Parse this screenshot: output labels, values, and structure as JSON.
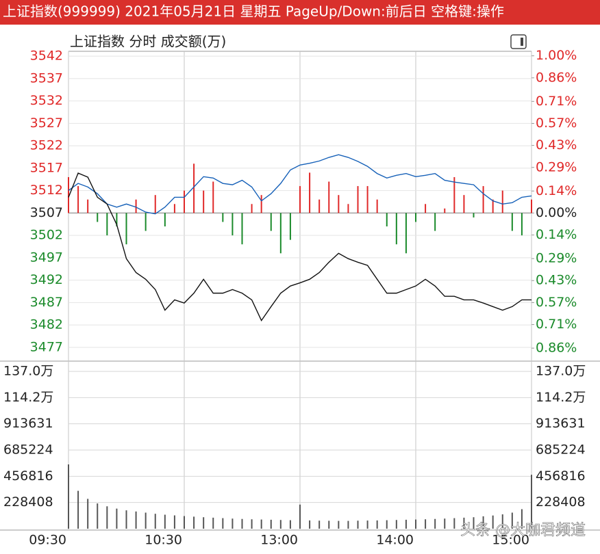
{
  "header": {
    "title": "上证指数(999999)  2021年05月21日  星期五  PageUp/Down:前后日  空格键:操作",
    "subtitle": "上证指数   分时  成交额(万)"
  },
  "watermark": "头条 @大咖君频道",
  "chart_data": [
    {
      "type": "line",
      "x": [
        0,
        5,
        10,
        15,
        20,
        25,
        30,
        35,
        40,
        45,
        50,
        55,
        60,
        65,
        70,
        75,
        80,
        85,
        90,
        95,
        100,
        105,
        110,
        115,
        120,
        125,
        130,
        135,
        140,
        145,
        150,
        155,
        160,
        165,
        170,
        175,
        180,
        185,
        190,
        195,
        200,
        205,
        210,
        215,
        220,
        225,
        230,
        235,
        240
      ],
      "xlim": [
        0,
        240
      ],
      "xticks": [
        {
          "value": 0,
          "label": "09:30"
        },
        {
          "value": 60,
          "label": "10:30"
        },
        {
          "value": 120,
          "label": "13:00"
        },
        {
          "value": 180,
          "label": "14:00"
        },
        {
          "value": 240,
          "label": "15:00"
        }
      ],
      "ylim": [
        3475,
        3544
      ],
      "yticks": [
        3542,
        3537,
        3532,
        3527,
        3522,
        3517,
        3512,
        3507,
        3502,
        3497,
        3492,
        3487,
        3482,
        3477
      ],
      "y2lim": [
        -0.912,
        1.055
      ],
      "y2ticks": [
        {
          "value": 1.0,
          "label": "1.00%"
        },
        {
          "value": 0.86,
          "label": "0.86%"
        },
        {
          "value": 0.71,
          "label": "0.71%"
        },
        {
          "value": 0.57,
          "label": "0.57%"
        },
        {
          "value": 0.43,
          "label": "0.43%"
        },
        {
          "value": 0.29,
          "label": "0.29%"
        },
        {
          "value": 0.14,
          "label": "0.14%"
        },
        {
          "value": 0,
          "label": "0.00%"
        },
        {
          "value": -0.14,
          "label": "0.14%"
        },
        {
          "value": -0.29,
          "label": "0.29%"
        },
        {
          "value": -0.43,
          "label": "0.43%"
        },
        {
          "value": -0.57,
          "label": "0.57%"
        },
        {
          "value": -0.71,
          "label": "0.71%"
        },
        {
          "value": -0.86,
          "label": "0.86%"
        }
      ],
      "grid": true,
      "up_color": "#e02828",
      "down_color": "#1a8a2a",
      "flat_color": "#222222",
      "series": [
        {
          "type": "bar",
          "up_color": "#e02828",
          "down_color": "#1a8a2a",
          "values": [
            3515,
            3513,
            3510,
            3505,
            3502,
            3504,
            3500,
            3510,
            3503,
            3511,
            3504,
            3509,
            3512,
            3518,
            3512,
            3514,
            3505,
            3502,
            3500,
            3509,
            3511,
            3503,
            3498,
            3501,
            3513,
            3516,
            3510,
            3514,
            3511,
            3509,
            3513,
            3513,
            3510,
            3504,
            3500,
            3498,
            3505,
            3509,
            3503,
            3508,
            3515,
            3511,
            3506,
            3513,
            3510,
            3512,
            3503,
            3502,
            3510
          ]
        },
        {
          "type": "line",
          "color": "#1560b8",
          "values": [
            3512,
            3513.6,
            3512.8,
            3511.3,
            3509,
            3508.3,
            3509,
            3508.3,
            3507.2,
            3506.8,
            3508.3,
            3510.5,
            3510.5,
            3512.8,
            3515.1,
            3514.8,
            3513.6,
            3513.3,
            3514.3,
            3512.8,
            3509.7,
            3511.3,
            3513.6,
            3516.6,
            3517.7,
            3518.1,
            3518.6,
            3519.4,
            3520,
            3519.4,
            3518.5,
            3517.4,
            3515.8,
            3514.8,
            3515.4,
            3515.8,
            3515.1,
            3515.4,
            3515.8,
            3514.3,
            3513.9,
            3513.6,
            3513.3,
            3511.3,
            3509.7,
            3509,
            3509.3,
            3510.5,
            3510.8
          ]
        },
        {
          "type": "line",
          "color": "#111111",
          "values": [
            3510.5,
            3515.9,
            3515,
            3510.5,
            3509,
            3504.4,
            3496.8,
            3493.7,
            3492.2,
            3489.9,
            3485.3,
            3487.6,
            3486.9,
            3489.1,
            3492.2,
            3489.1,
            3489.1,
            3489.9,
            3489.1,
            3487.6,
            3483,
            3486.1,
            3489.1,
            3490.7,
            3491.4,
            3492.2,
            3493.7,
            3496,
            3498,
            3496.8,
            3496,
            3495.3,
            3492.2,
            3489.1,
            3489.1,
            3489.9,
            3490.7,
            3492.2,
            3490.7,
            3488.4,
            3488.4,
            3487.6,
            3487.6,
            3486.9,
            3486.1,
            3485.3,
            3486.1,
            3487.6,
            3487.6
          ]
        }
      ]
    },
    {
      "type": "bar",
      "x": [
        0,
        5,
        10,
        15,
        20,
        25,
        30,
        35,
        40,
        45,
        50,
        55,
        60,
        65,
        70,
        75,
        80,
        85,
        90,
        95,
        100,
        105,
        110,
        115,
        120,
        125,
        130,
        135,
        140,
        145,
        150,
        155,
        160,
        165,
        170,
        175,
        180,
        185,
        190,
        195,
        200,
        205,
        210,
        215,
        220,
        225,
        230,
        235,
        240
      ],
      "xlim": [
        0,
        240
      ],
      "xticks": [
        {
          "value": 0,
          "label": "09:30"
        },
        {
          "value": 60,
          "label": "10:30"
        },
        {
          "value": 120,
          "label": "13:00"
        },
        {
          "value": 180,
          "label": "14:00"
        },
        {
          "value": 240,
          "label": "15:00"
        }
      ],
      "ylim": [
        0,
        1370448
      ],
      "yticks": [
        {
          "value": 1370448,
          "label": "137.0万"
        },
        {
          "value": 1142040,
          "label": "114.2万"
        },
        913631,
        685224,
        456816,
        228408
      ],
      "grid": true,
      "color": "#555555",
      "values": [
        560000,
        330000,
        260000,
        220000,
        195000,
        175000,
        160000,
        150000,
        140000,
        130000,
        122000,
        116000,
        110000,
        105000,
        100000,
        96000,
        92000,
        88000,
        85000,
        82000,
        80000,
        78000,
        76000,
        74000,
        210000,
        72000,
        70000,
        69000,
        68000,
        68000,
        70000,
        71000,
        72000,
        74000,
        76000,
        78000,
        80000,
        82000,
        85000,
        88000,
        92000,
        96000,
        100000,
        108000,
        115000,
        125000,
        140000,
        170000,
        470000
      ]
    }
  ]
}
